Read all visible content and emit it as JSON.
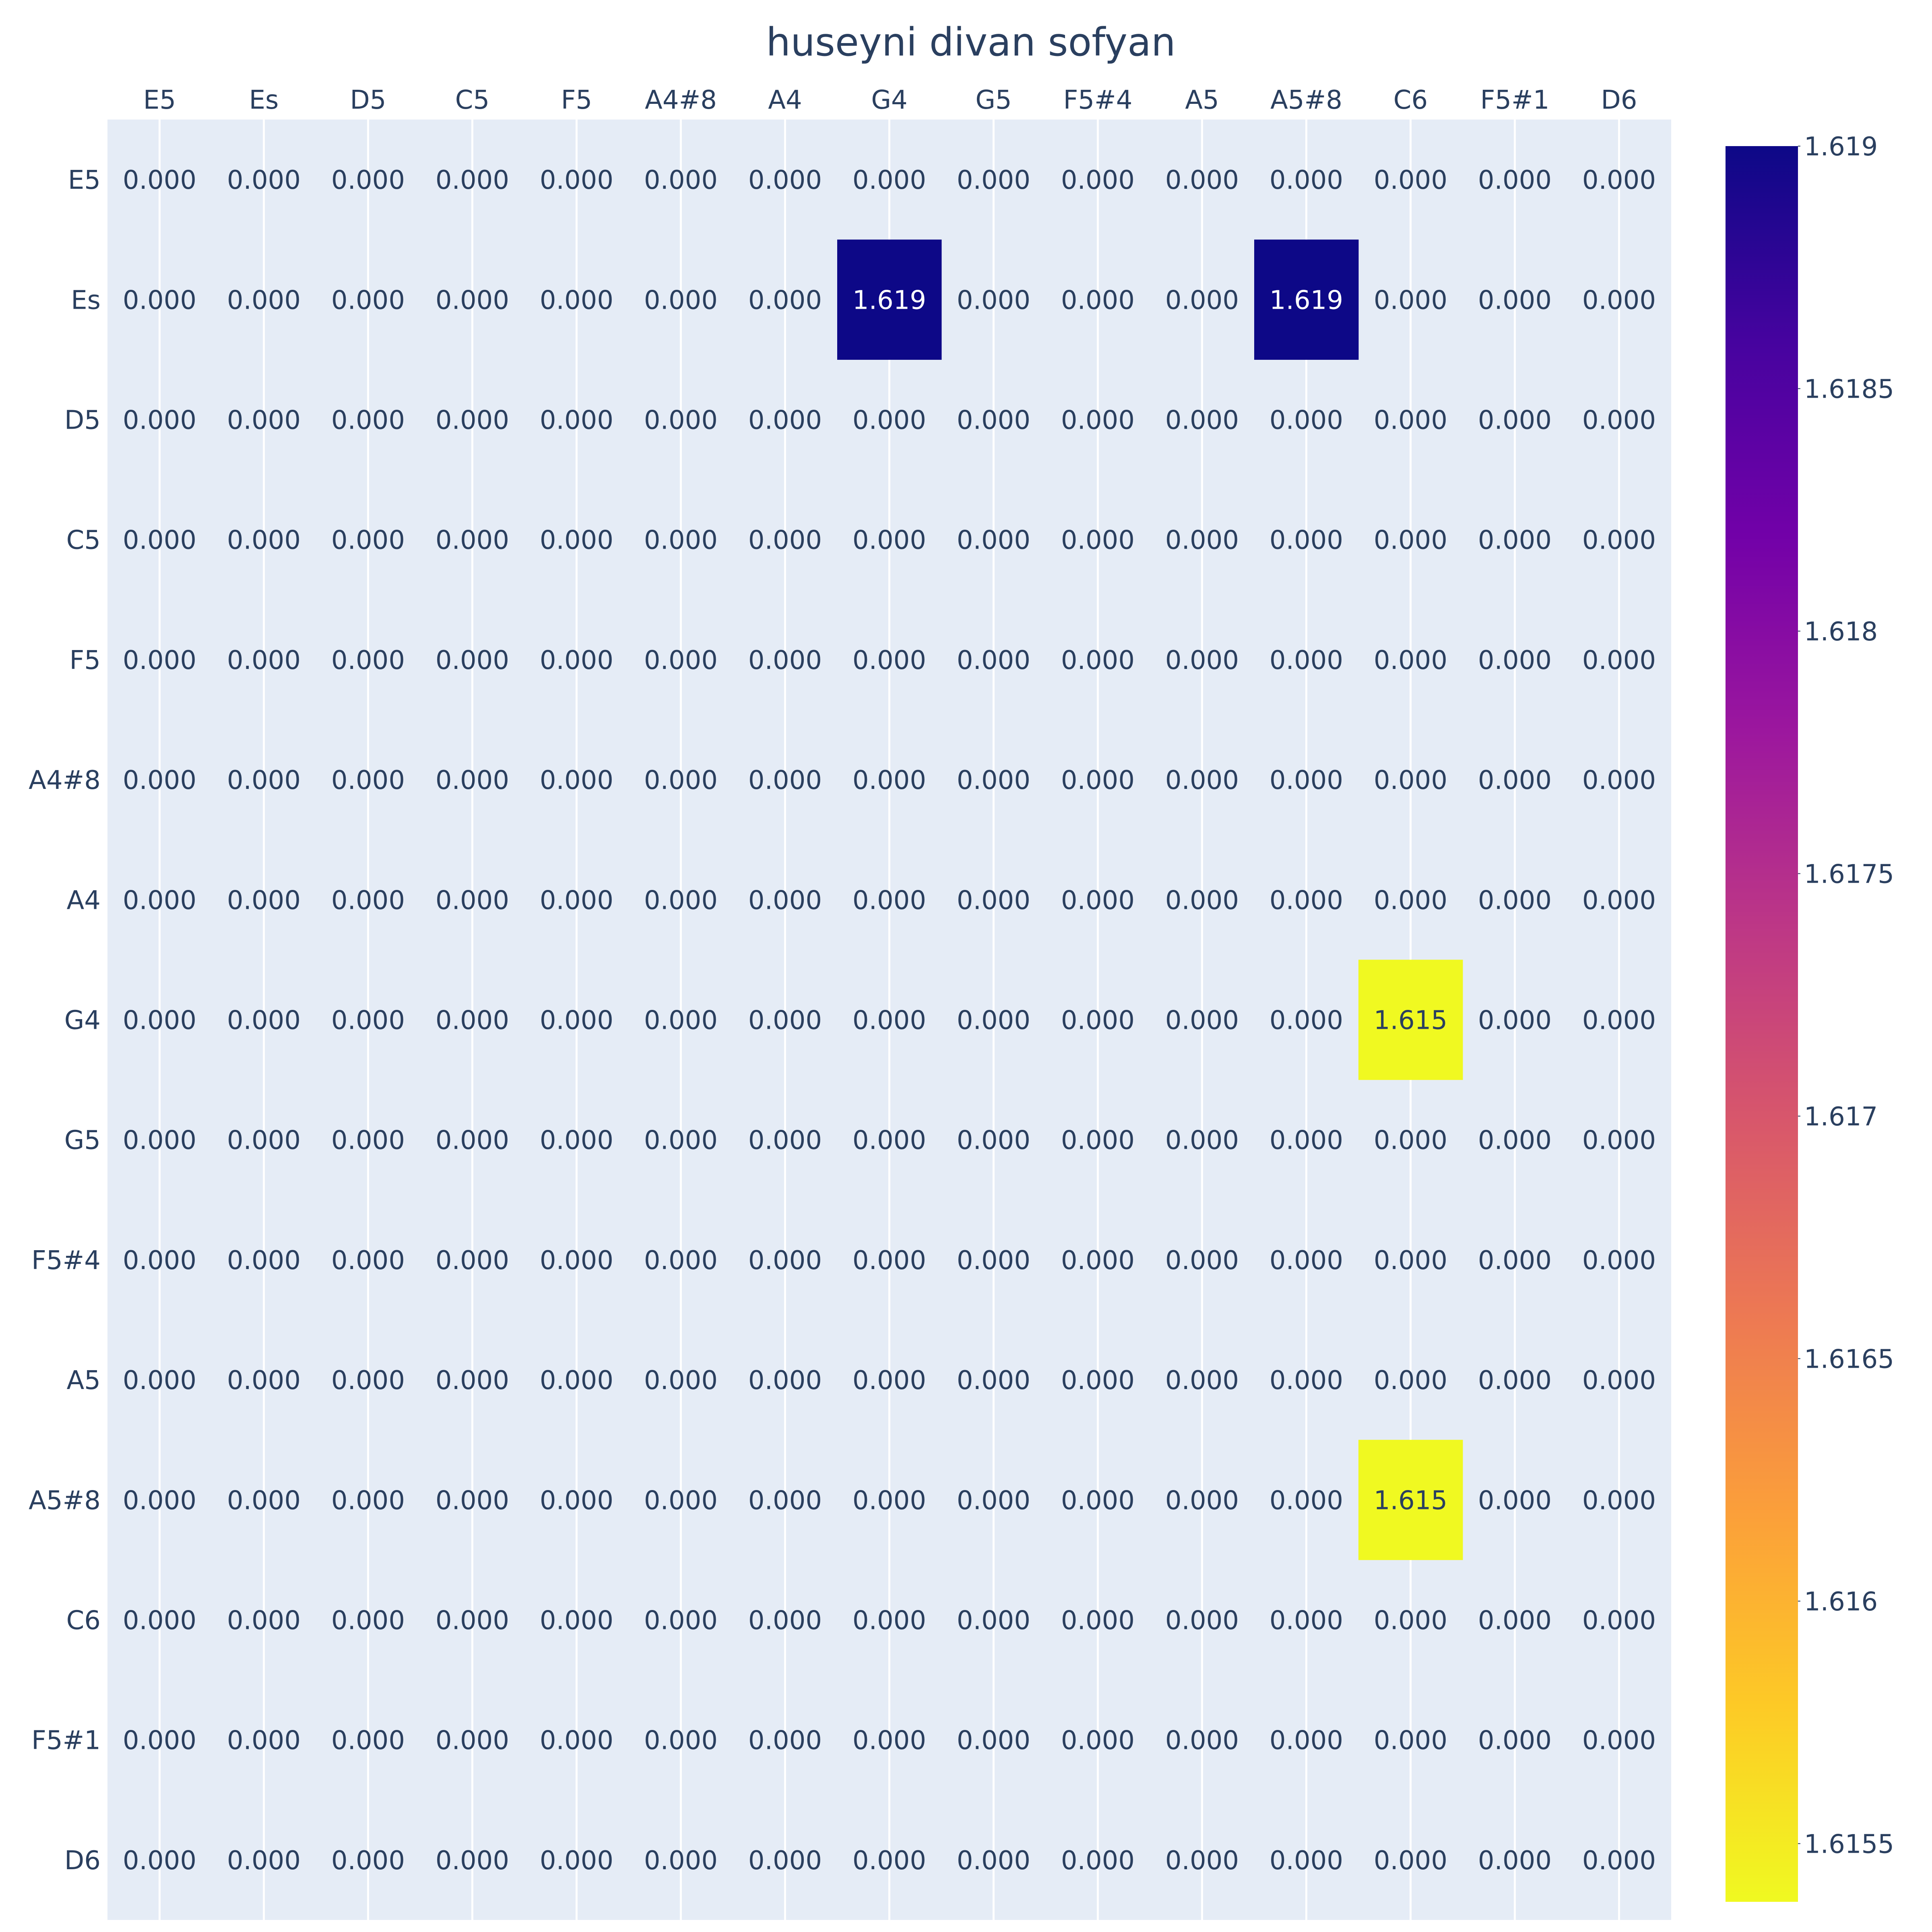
{
  "chart_data": {
    "type": "heatmap",
    "title": "huseyni divan sofyan",
    "x_categories": [
      "E5",
      "Es",
      "D5",
      "C5",
      "F5",
      "A4#8",
      "A4",
      "G4",
      "G5",
      "F5#4",
      "A5",
      "A5#8",
      "C6",
      "F5#1",
      "D6"
    ],
    "y_categories": [
      "E5",
      "Es",
      "D5",
      "C5",
      "F5",
      "A4#8",
      "A4",
      "G4",
      "G5",
      "F5#4",
      "A5",
      "A5#8",
      "C6",
      "F5#1",
      "D6"
    ],
    "x_axis_side": "top",
    "values": [
      [
        0,
        0,
        0,
        0,
        0,
        0,
        0,
        0,
        0,
        0,
        0,
        0,
        0,
        0,
        0
      ],
      [
        0,
        0,
        0,
        0,
        0,
        0,
        0,
        1.619,
        0,
        0,
        0,
        1.619,
        0,
        0,
        0
      ],
      [
        0,
        0,
        0,
        0,
        0,
        0,
        0,
        0,
        0,
        0,
        0,
        0,
        0,
        0,
        0
      ],
      [
        0,
        0,
        0,
        0,
        0,
        0,
        0,
        0,
        0,
        0,
        0,
        0,
        0,
        0,
        0
      ],
      [
        0,
        0,
        0,
        0,
        0,
        0,
        0,
        0,
        0,
        0,
        0,
        0,
        0,
        0,
        0
      ],
      [
        0,
        0,
        0,
        0,
        0,
        0,
        0,
        0,
        0,
        0,
        0,
        0,
        0,
        0,
        0
      ],
      [
        0,
        0,
        0,
        0,
        0,
        0,
        0,
        0,
        0,
        0,
        0,
        0,
        0,
        0,
        0
      ],
      [
        0,
        0,
        0,
        0,
        0,
        0,
        0,
        0,
        0,
        0,
        0,
        0,
        1.615,
        0,
        0
      ],
      [
        0,
        0,
        0,
        0,
        0,
        0,
        0,
        0,
        0,
        0,
        0,
        0,
        0,
        0,
        0
      ],
      [
        0,
        0,
        0,
        0,
        0,
        0,
        0,
        0,
        0,
        0,
        0,
        0,
        0,
        0,
        0
      ],
      [
        0,
        0,
        0,
        0,
        0,
        0,
        0,
        0,
        0,
        0,
        0,
        0,
        0,
        0,
        0
      ],
      [
        0,
        0,
        0,
        0,
        0,
        0,
        0,
        0,
        0,
        0,
        0,
        0,
        1.615,
        0,
        0
      ],
      [
        0,
        0,
        0,
        0,
        0,
        0,
        0,
        0,
        0,
        0,
        0,
        0,
        0,
        0,
        0
      ],
      [
        0,
        0,
        0,
        0,
        0,
        0,
        0,
        0,
        0,
        0,
        0,
        0,
        0,
        0,
        0
      ],
      [
        0,
        0,
        0,
        0,
        0,
        0,
        0,
        0,
        0,
        0,
        0,
        0,
        0,
        0,
        0
      ]
    ],
    "zero_cells_drawn": false,
    "value_format": "0.000",
    "colorscale": "Plasma (reversed)",
    "colorscale_stops": [
      "#0d0887",
      "#46039f",
      "#7201a8",
      "#9c179e",
      "#bd3786",
      "#d8576b",
      "#ed7953",
      "#fb9f3a",
      "#fdca26",
      "#f0f921"
    ],
    "colorbar": {
      "range": [
        1.61538,
        1.619
      ],
      "tick_values": [
        1.6155,
        1.616,
        1.6165,
        1.617,
        1.6175,
        1.618,
        1.6185,
        1.619
      ],
      "tick_labels": [
        "1.6155",
        "1.616",
        "1.6165",
        "1.617",
        "1.6175",
        "1.618",
        "1.6185",
        "1.619"
      ]
    },
    "colors": {
      "plot_background": "#e5ecf6",
      "gridline": "#ffffff",
      "text": "#2a3f5f"
    }
  }
}
